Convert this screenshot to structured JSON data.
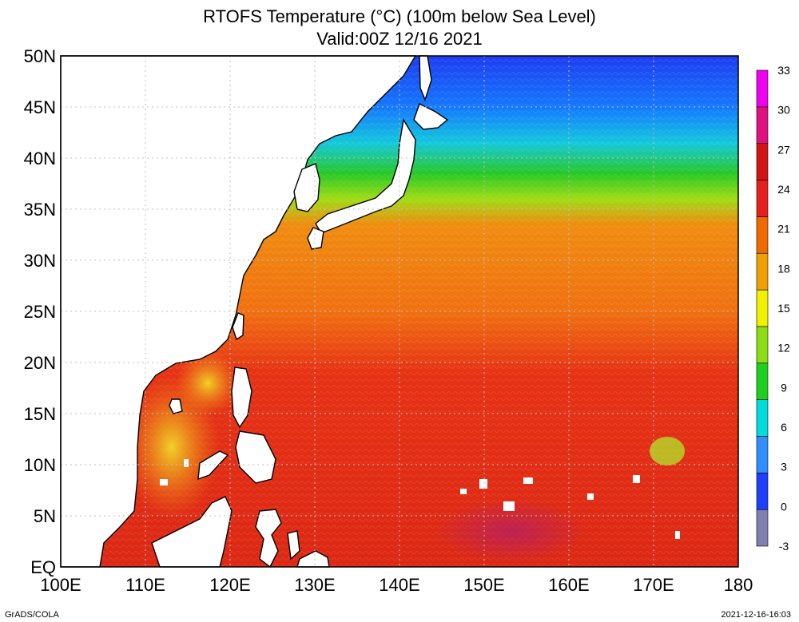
{
  "title": {
    "line1": "RTOFS Temperature (°C) (100m below Sea Level)",
    "line2": "Valid:00Z 12/16 2021"
  },
  "map": {
    "lat_labels": [
      "EQ",
      "5N",
      "10N",
      "15N",
      "20N",
      "25N",
      "30N",
      "35N",
      "40N",
      "45N",
      "50N"
    ],
    "lon_labels": [
      "100E",
      "110E",
      "120E",
      "130E",
      "140E",
      "150E",
      "160E",
      "170E",
      "180"
    ],
    "lat_range": [
      0,
      50
    ],
    "lon_range": [
      100,
      180
    ],
    "grid": "dotted"
  },
  "colorbar": {
    "ticks": [
      "-3",
      "0",
      "3",
      "6",
      "9",
      "12",
      "15",
      "18",
      "21",
      "24",
      "27",
      "30",
      "33"
    ],
    "colors": [
      "#7f7fb0",
      "#1f3fff",
      "#2f8fff",
      "#00dcdc",
      "#1ed01e",
      "#8cdc14",
      "#f0f000",
      "#f0a000",
      "#f06a00",
      "#e61e1e",
      "#d21414",
      "#e01080",
      "#f000f0"
    ]
  },
  "footer": {
    "left": "GrADS/COLA",
    "right": "2021-12-16-16:03"
  }
}
